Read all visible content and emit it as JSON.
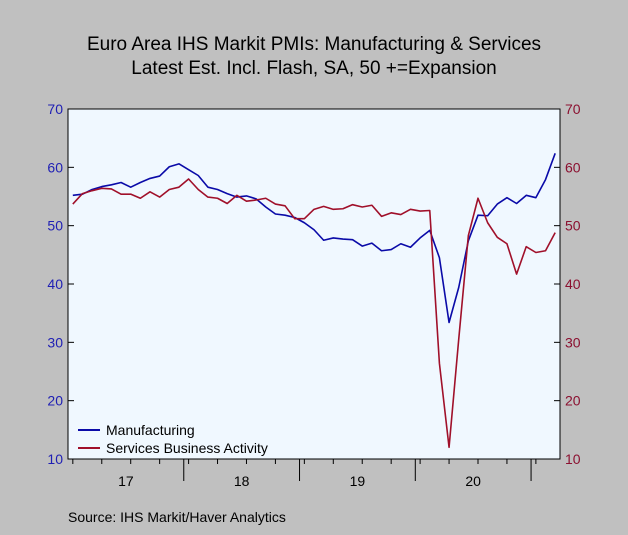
{
  "chart_data": {
    "type": "line",
    "title": "Euro Area IHS Markit PMIs: Manufacturing & Services",
    "subtitle": "Latest Est. Incl. Flash, SA, 50 +=Expansion",
    "source": "Source:  IHS Markit/Haver Analytics",
    "ylim": [
      10,
      70
    ],
    "yticks": [
      10,
      20,
      30,
      40,
      50,
      60,
      70
    ],
    "left_axis_color": "#1f1fb4",
    "right_axis_color": "#8b1030",
    "x_start": "2017-01",
    "x_end": "2021-03",
    "year_labels": [
      "17",
      "18",
      "19",
      "20"
    ],
    "legend_position": "bottom-left",
    "grid": false,
    "series": [
      {
        "name": "Manufacturing",
        "color": "#0a0aa8",
        "values": [
          55.2,
          55.4,
          56.2,
          56.7,
          57.0,
          57.4,
          56.6,
          57.4,
          58.1,
          58.5,
          60.1,
          60.6,
          59.6,
          58.6,
          56.6,
          56.2,
          55.5,
          54.9,
          55.1,
          54.6,
          53.2,
          52.0,
          51.8,
          51.4,
          50.5,
          49.3,
          47.5,
          47.9,
          47.7,
          47.6,
          46.5,
          47.0,
          45.7,
          45.9,
          46.9,
          46.3,
          47.9,
          49.2,
          44.5,
          33.4,
          39.4,
          47.4,
          51.8,
          51.7,
          53.7,
          54.8,
          53.8,
          55.2,
          54.8,
          57.9,
          62.4
        ],
        "label_key": "legend.manufacturing"
      },
      {
        "name": "Services Business Activity",
        "color": "#a0102a",
        "values": [
          53.7,
          55.5,
          56.0,
          56.4,
          56.3,
          55.4,
          55.4,
          54.7,
          55.8,
          54.9,
          56.2,
          56.6,
          58.0,
          56.2,
          54.9,
          54.7,
          53.8,
          55.2,
          54.2,
          54.4,
          54.7,
          53.7,
          53.4,
          51.2,
          51.2,
          52.8,
          53.3,
          52.8,
          52.9,
          53.6,
          53.2,
          53.5,
          51.6,
          52.2,
          51.9,
          52.8,
          52.5,
          52.6,
          26.4,
          12.0,
          30.5,
          48.3,
          54.7,
          50.5,
          48.0,
          46.9,
          41.7,
          46.4,
          45.4,
          45.7,
          48.8
        ],
        "label_key": "legend.services"
      }
    ]
  },
  "legend": {
    "manufacturing": "Manufacturing",
    "services": "Services Business Activity"
  }
}
